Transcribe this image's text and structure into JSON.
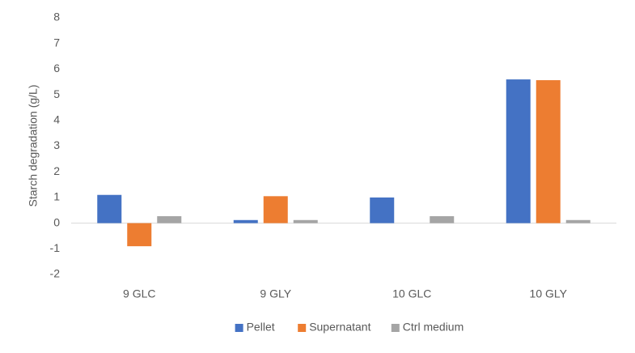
{
  "chart_data": {
    "type": "bar",
    "y_label": "Starch degradation (g/L)",
    "categories": [
      "9 GLC",
      "9 GLY",
      "10 GLC",
      "10 GLY"
    ],
    "series": [
      {
        "name": "Pellet",
        "color": "#4472c4",
        "values": [
          1.1,
          0.12,
          1.0,
          5.6
        ]
      },
      {
        "name": "Supernatant",
        "color": "#ed7d31",
        "values": [
          -0.9,
          1.05,
          0,
          5.57
        ]
      },
      {
        "name": "Ctrl medium",
        "color": "#a5a5a5",
        "values": [
          0.27,
          0.12,
          0.27,
          0.12
        ]
      }
    ],
    "ylim": [
      -2,
      8
    ],
    "yticks": [
      -2,
      -1,
      0,
      1,
      2,
      3,
      4,
      5,
      6,
      7,
      8
    ],
    "grid": false,
    "legend": "bottom"
  }
}
